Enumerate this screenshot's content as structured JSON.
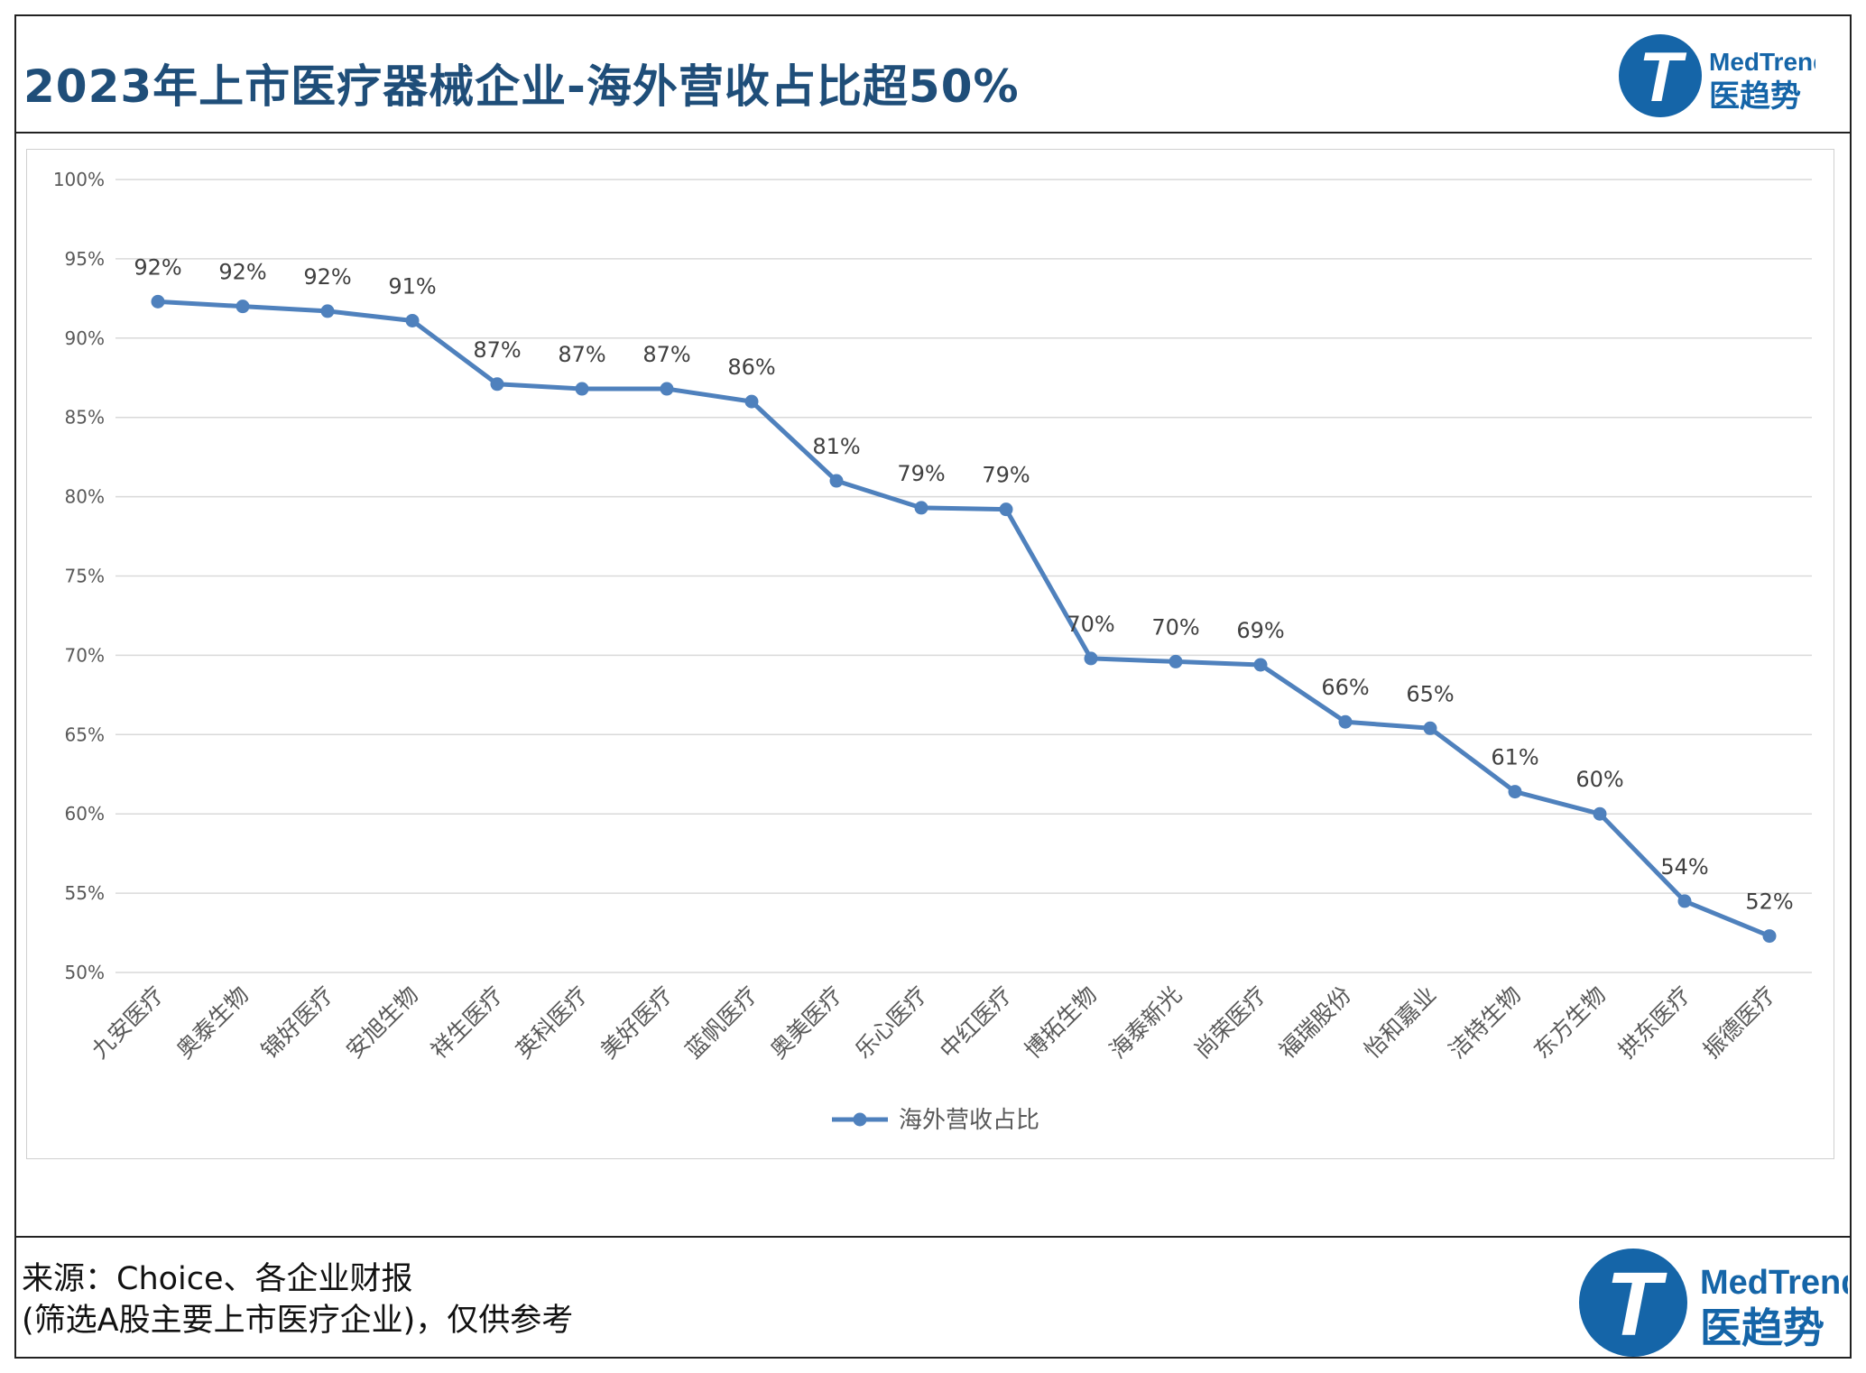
{
  "header": {
    "title": "2023年上市医疗器械企业-海外营收占比超50%"
  },
  "logo": {
    "letter": "T",
    "brand_en": "MedTrend",
    "brand_cn": "医趋势",
    "color": "#1565a8"
  },
  "footer": {
    "source_line1": "来源：Choice、各企业财报",
    "source_line2": "(筛选A股主要上市医疗企业)，仅供参考"
  },
  "chart_data": {
    "type": "line",
    "title": "",
    "xlabel": "",
    "ylabel": "",
    "ylim": [
      50,
      100
    ],
    "ytick_step": 5,
    "ytick_labels": [
      "50%",
      "55%",
      "60%",
      "65%",
      "70%",
      "75%",
      "80%",
      "85%",
      "90%",
      "95%",
      "100%"
    ],
    "grid": true,
    "legend_position": "bottom-center",
    "categories": [
      "九安医疗",
      "奥泰生物",
      "锦好医疗",
      "安旭生物",
      "祥生医疗",
      "英科医疗",
      "美好医疗",
      "蓝帆医疗",
      "奥美医疗",
      "乐心医疗",
      "中红医疗",
      "博拓生物",
      "海泰新光",
      "尚荣医疗",
      "福瑞股份",
      "怡和嘉业",
      "洁特生物",
      "东方生物",
      "拱东医疗",
      "振德医疗"
    ],
    "series": [
      {
        "name": "海外营收占比",
        "color": "#4f81bd",
        "values": [
          92.3,
          92.0,
          91.7,
          91.1,
          87.1,
          86.8,
          86.8,
          86.0,
          81.0,
          79.3,
          79.2,
          69.8,
          69.6,
          69.4,
          65.8,
          65.4,
          61.4,
          60.0,
          54.5,
          52.3
        ],
        "labels": [
          "92%",
          "92%",
          "92%",
          "91%",
          "87%",
          "87%",
          "87%",
          "86%",
          "81%",
          "79%",
          "79%",
          "70%",
          "70%",
          "69%",
          "66%",
          "65%",
          "61%",
          "60%",
          "54%",
          "52%"
        ]
      }
    ]
  }
}
